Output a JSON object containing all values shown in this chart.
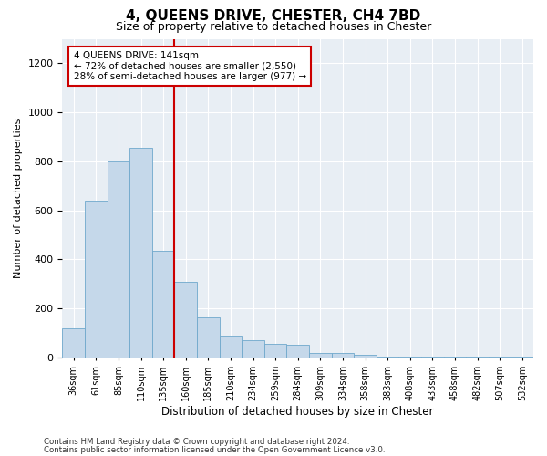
{
  "title": "4, QUEENS DRIVE, CHESTER, CH4 7BD",
  "subtitle": "Size of property relative to detached houses in Chester",
  "xlabel": "Distribution of detached houses by size in Chester",
  "ylabel": "Number of detached properties",
  "property_label": "4 QUEENS DRIVE: 141sqm",
  "pct_smaller": "72% of detached houses are smaller (2,550)",
  "pct_larger": "28% of semi-detached houses are larger (977)",
  "bar_color": "#c5d8ea",
  "bar_edge_color": "#6fa8cc",
  "vline_color": "#cc0000",
  "bg_color": "#e8eef4",
  "categories": [
    "36sqm",
    "61sqm",
    "85sqm",
    "110sqm",
    "135sqm",
    "160sqm",
    "185sqm",
    "210sqm",
    "234sqm",
    "259sqm",
    "284sqm",
    "309sqm",
    "334sqm",
    "358sqm",
    "383sqm",
    "408sqm",
    "433sqm",
    "458sqm",
    "482sqm",
    "507sqm",
    "532sqm"
  ],
  "values": [
    120,
    640,
    800,
    855,
    435,
    310,
    165,
    90,
    70,
    55,
    50,
    20,
    20,
    10,
    5,
    5,
    3,
    3,
    3,
    3,
    3
  ],
  "ylim": [
    0,
    1300
  ],
  "yticks": [
    0,
    200,
    400,
    600,
    800,
    1000,
    1200
  ],
  "vline_position": 4.5,
  "footnote1": "Contains HM Land Registry data © Crown copyright and database right 2024.",
  "footnote2": "Contains public sector information licensed under the Open Government Licence v3.0."
}
